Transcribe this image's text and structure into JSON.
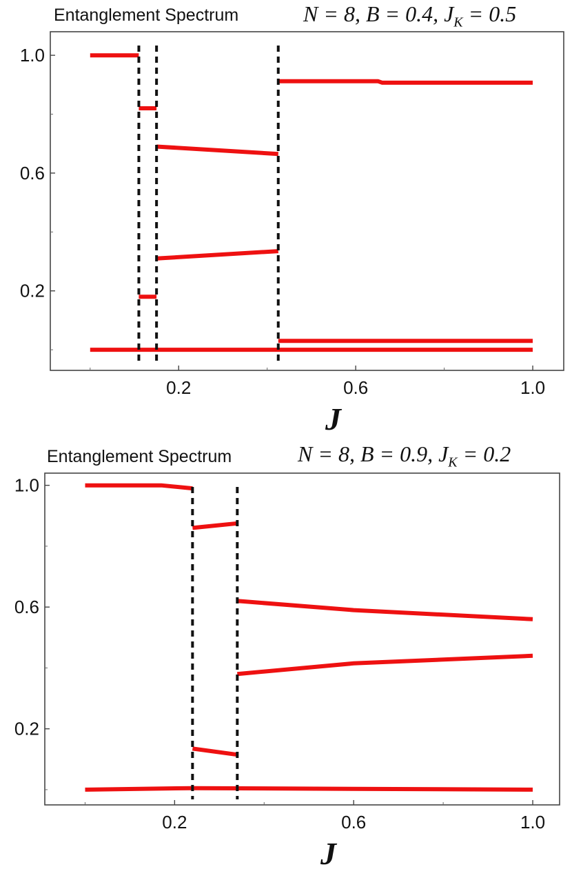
{
  "chart_data": [
    {
      "type": "line",
      "title": "Entanglement Spectrum",
      "parameters": "N = 8, B = 0.4, J_K = 0.5",
      "parameters_display": "N = 8, B = 0.4, J",
      "parameters_sub": "K",
      "parameters_tail": " = 0.5",
      "xlabel": "J",
      "ylabel": "",
      "xlim": [
        -0.09,
        1.07
      ],
      "ylim": [
        -0.07,
        1.08
      ],
      "x_ticks": [
        0.2,
        0.6,
        1.0
      ],
      "x_tick_labels": [
        "0.2",
        "0.6",
        "1.0"
      ],
      "y_ticks": [
        0.2,
        0.6,
        1.0
      ],
      "y_tick_labels": [
        "0.2",
        "0.6",
        "1.0"
      ],
      "minor_x_ticks": [
        0.0,
        0.4,
        0.8
      ],
      "minor_y_ticks": [
        0.0,
        0.4,
        0.8
      ],
      "grid": false,
      "color": "#ee1111",
      "transitions": [
        0.11,
        0.15,
        0.425
      ],
      "series": [
        {
          "x": [
            0.0,
            0.11
          ],
          "y": [
            1.0,
            1.0
          ]
        },
        {
          "x": [
            0.0,
            1.0
          ],
          "y": [
            0.0,
            0.0
          ]
        },
        {
          "x": [
            0.11,
            0.15
          ],
          "y": [
            0.82,
            0.82
          ]
        },
        {
          "x": [
            0.11,
            0.15
          ],
          "y": [
            0.18,
            0.18
          ]
        },
        {
          "x": [
            0.15,
            0.425
          ],
          "y": [
            0.69,
            0.665
          ]
        },
        {
          "x": [
            0.15,
            0.425
          ],
          "y": [
            0.31,
            0.335
          ]
        },
        {
          "x": [
            0.425,
            0.65,
            0.66,
            1.0
          ],
          "y": [
            0.912,
            0.912,
            0.907,
            0.907
          ]
        },
        {
          "x": [
            0.425,
            1.0
          ],
          "y": [
            0.03,
            0.03
          ]
        }
      ]
    },
    {
      "type": "line",
      "title": "Entanglement Spectrum",
      "parameters": "N = 8, B = 0.9, J_K = 0.2",
      "parameters_display": "N = 8, B = 0.9, J",
      "parameters_sub": "K",
      "parameters_tail": " = 0.2",
      "xlabel": "J",
      "ylabel": "",
      "xlim": [
        -0.09,
        1.06
      ],
      "ylim": [
        -0.05,
        1.04
      ],
      "x_ticks": [
        0.2,
        0.6,
        1.0
      ],
      "x_tick_labels": [
        "0.2",
        "0.6",
        "1.0"
      ],
      "y_ticks": [
        0.2,
        0.6,
        1.0
      ],
      "y_tick_labels": [
        "0.2",
        "0.6",
        "1.0"
      ],
      "minor_x_ticks": [
        0.0,
        0.4,
        0.8
      ],
      "minor_y_ticks": [
        0.0,
        0.4,
        0.8
      ],
      "grid": false,
      "color": "#ee1111",
      "transitions": [
        0.24,
        0.34
      ],
      "series": [
        {
          "x": [
            0.0,
            0.17,
            0.24
          ],
          "y": [
            1.0,
            1.0,
            0.99
          ]
        },
        {
          "x": [
            0.0,
            0.24,
            1.0
          ],
          "y": [
            0.0,
            0.005,
            0.0
          ]
        },
        {
          "x": [
            0.24,
            0.34
          ],
          "y": [
            0.86,
            0.875
          ]
        },
        {
          "x": [
            0.24,
            0.34
          ],
          "y": [
            0.135,
            0.115
          ]
        },
        {
          "x": [
            0.34,
            0.6,
            1.0
          ],
          "y": [
            0.62,
            0.59,
            0.56
          ]
        },
        {
          "x": [
            0.34,
            0.6,
            1.0
          ],
          "y": [
            0.38,
            0.415,
            0.44
          ]
        }
      ]
    }
  ]
}
